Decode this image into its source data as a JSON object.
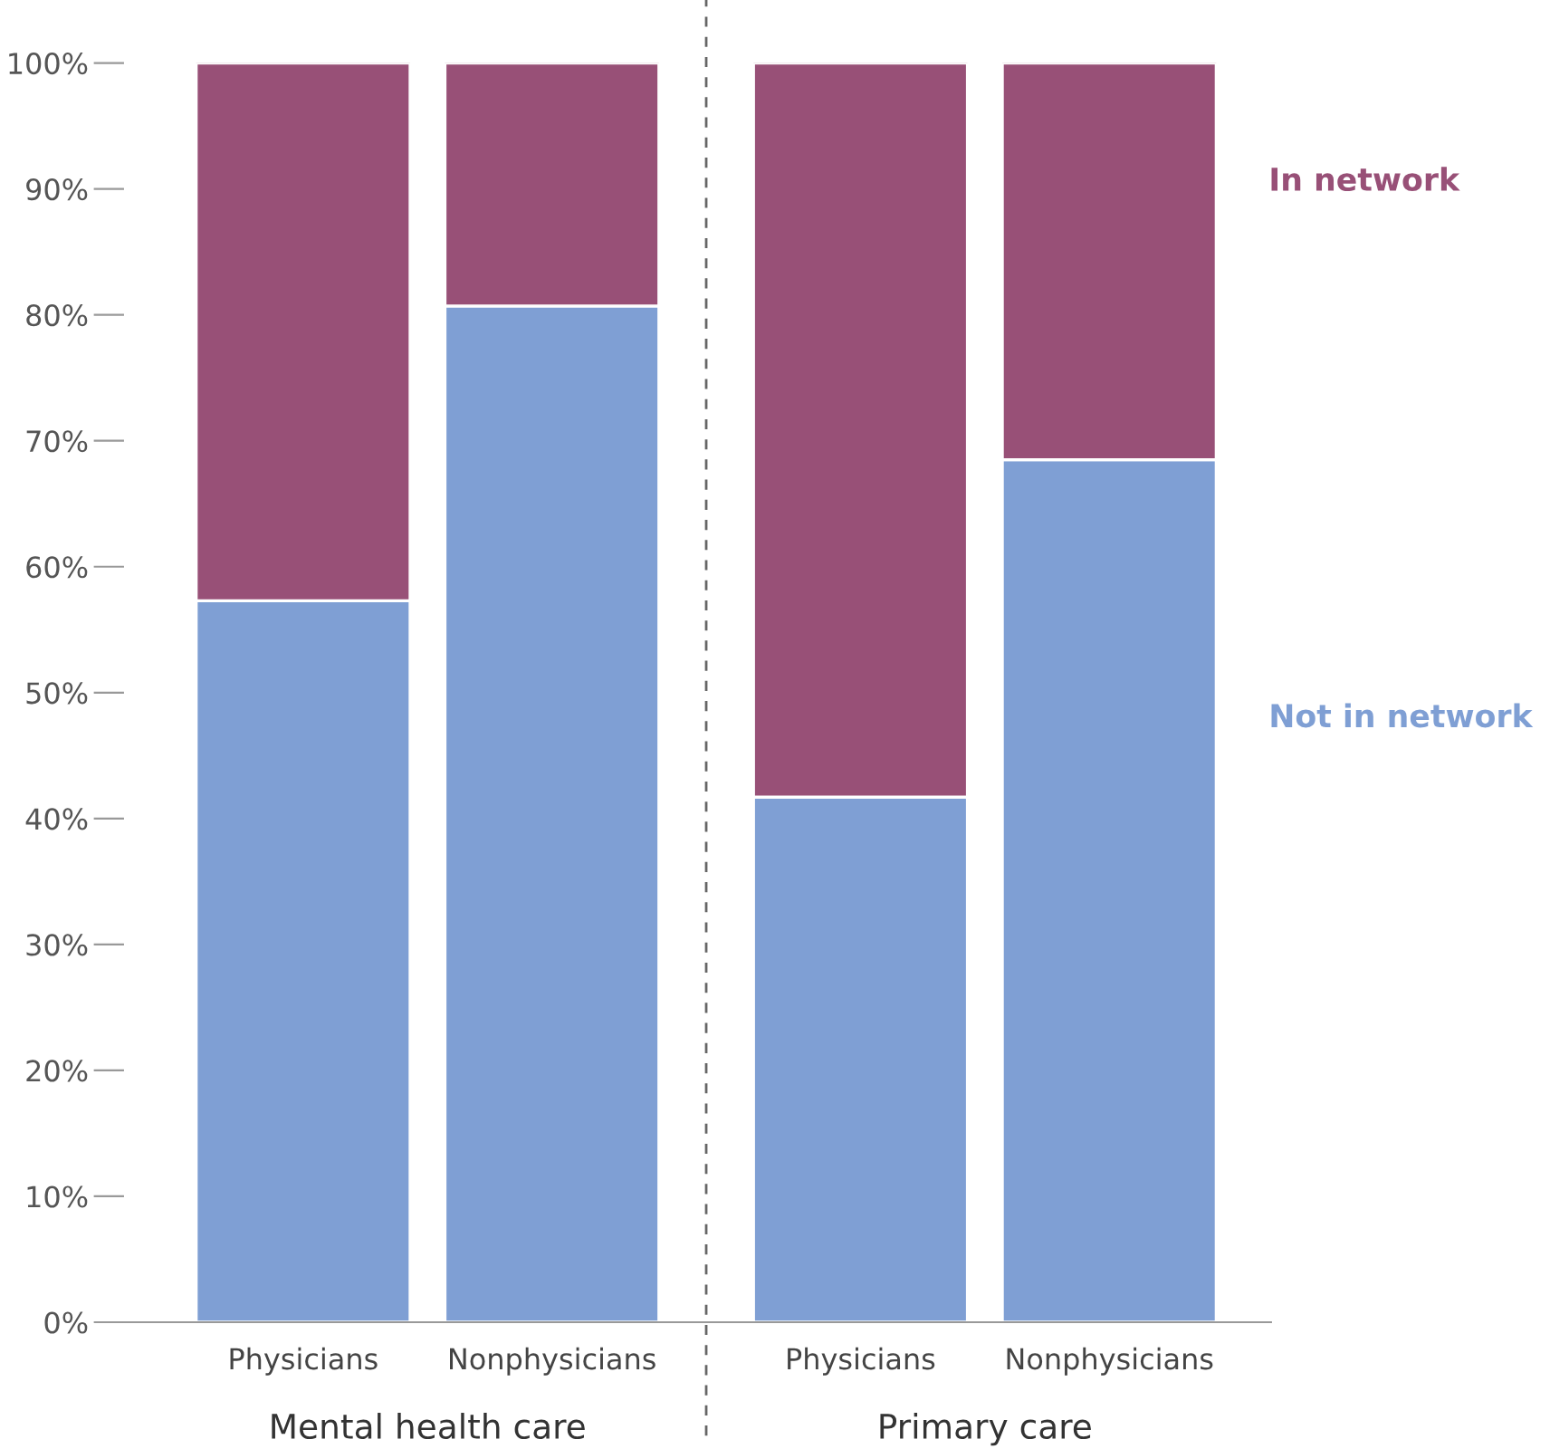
{
  "chart_data": {
    "type": "bar",
    "stacked": true,
    "categories": [
      "Physicians",
      "Nonphysicians",
      "Physicians",
      "Nonphysicians"
    ],
    "series": [
      {
        "name": "Not in network",
        "color": "#7f9fd4",
        "values": [
          57.3,
          80.7,
          41.7,
          68.5
        ]
      },
      {
        "name": "In network",
        "color": "#985077",
        "values": [
          42.7,
          19.3,
          58.3,
          31.5
        ]
      }
    ],
    "ylim": [
      0,
      100
    ],
    "yticks": [
      {
        "value": 0,
        "label": "0%"
      },
      {
        "value": 10,
        "label": "10%"
      },
      {
        "value": 20,
        "label": "20%"
      },
      {
        "value": 30,
        "label": "30%"
      },
      {
        "value": 40,
        "label": "40%"
      },
      {
        "value": 50,
        "label": "50%"
      },
      {
        "value": 60,
        "label": "60%"
      },
      {
        "value": 70,
        "label": "70%"
      },
      {
        "value": 80,
        "label": "80%"
      },
      {
        "value": 90,
        "label": "90%"
      },
      {
        "value": 100,
        "label": "100%"
      }
    ],
    "annotations": [
      "Mental health care",
      "Primary care"
    ],
    "ref_lines": [
      {
        "axis": "x",
        "line_style": "dashed",
        "color": "#666666"
      }
    ],
    "legend": "right",
    "grid": false
  }
}
